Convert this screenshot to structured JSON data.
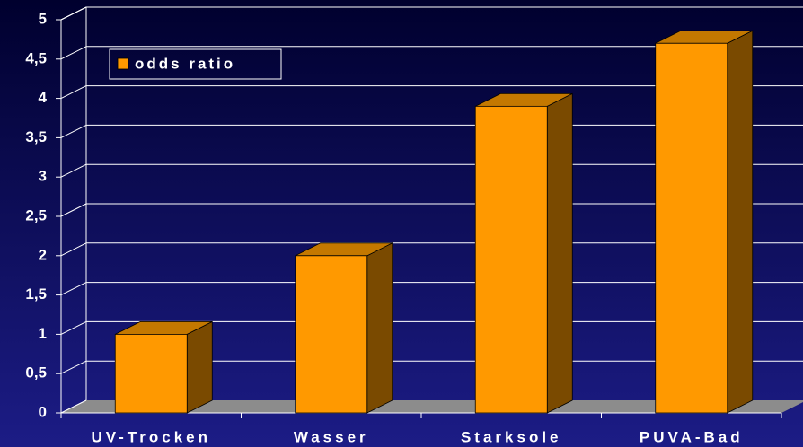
{
  "chart_data": {
    "type": "bar3d",
    "categories": [
      "UV-Trocken",
      "Wasser",
      "Starksole",
      "PUVA-Bad"
    ],
    "series": [
      {
        "name": "odds ratio",
        "color": "#ff9900",
        "values": [
          1,
          2,
          3.9,
          4.7
        ]
      }
    ],
    "ylim": [
      0,
      5
    ],
    "yticks": [
      0,
      {
        "value": 0.5,
        "label": "0,5"
      },
      1,
      {
        "value": 1.5,
        "label": "1,5"
      },
      2,
      {
        "value": 2.5,
        "label": "2,5"
      },
      3,
      {
        "value": 3.5,
        "label": "3,5"
      },
      4,
      {
        "value": 4.5,
        "label": "4,5"
      },
      5
    ],
    "grid": true,
    "legend": "top-left"
  }
}
